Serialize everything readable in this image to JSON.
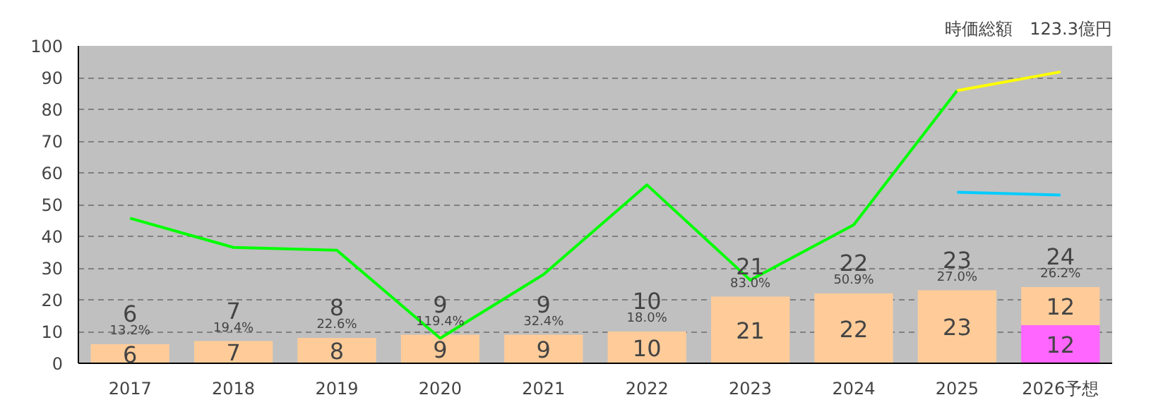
{
  "chart_data": {
    "type": "bar",
    "stacked": true,
    "categories": [
      "2017",
      "2018",
      "2019",
      "2020",
      "2021",
      "2022",
      "2023",
      "2024",
      "2025",
      "2026予想"
    ],
    "series": [
      {
        "color": "#ff66ff",
        "values": [
          null,
          null,
          null,
          null,
          null,
          null,
          null,
          null,
          null,
          12
        ],
        "value_labels": [
          null,
          null,
          null,
          null,
          null,
          null,
          null,
          null,
          null,
          "12"
        ]
      },
      {
        "color": "#ffcc99",
        "values": [
          6,
          7,
          8,
          9,
          9,
          10,
          21,
          22,
          23,
          12
        ],
        "value_labels": [
          "6",
          "7",
          "8",
          "9",
          "9",
          "10",
          "21",
          "22",
          "23",
          "12"
        ]
      },
      {
        "type": "line",
        "color": "#00ff00",
        "values": [
          45.7,
          36.5,
          35.6,
          7.9,
          28.0,
          56.2,
          26.2,
          43.6,
          85.9,
          null
        ]
      },
      {
        "type": "line",
        "color": "#ffff00",
        "values": [
          null,
          null,
          null,
          null,
          null,
          null,
          null,
          null,
          85.9,
          91.8
        ]
      },
      {
        "type": "line",
        "color": "#00ccff",
        "values": [
          null,
          null,
          null,
          null,
          null,
          null,
          null,
          null,
          53.9,
          53.0
        ]
      }
    ],
    "totals": [
      "6",
      "7",
      "8",
      "9",
      "9",
      "10",
      "21",
      "22",
      "23",
      "24"
    ],
    "annotations": [
      {
        "text": "13.2%",
        "x": "2017",
        "y": 6
      },
      {
        "text": "19.4%",
        "x": "2018",
        "y": 7
      },
      {
        "text": "22.6%",
        "x": "2019",
        "y": 8
      },
      {
        "text": "119.4%",
        "x": "2020",
        "y": 9
      },
      {
        "text": "32.4%",
        "x": "2021",
        "y": 9
      },
      {
        "text": "18.0%",
        "x": "2022",
        "y": 10
      },
      {
        "text": "83.0%",
        "x": "2023",
        "y": 21
      },
      {
        "text": "50.9%",
        "x": "2024",
        "y": 22
      },
      {
        "text": "27.0%",
        "x": "2025",
        "y": 23
      },
      {
        "text": "26.2%",
        "x": "2026予想",
        "y": 24
      },
      "時価総額　123.3億円"
    ],
    "ylim": [
      0,
      100
    ],
    "yticks": [
      0,
      10,
      20,
      30,
      40,
      50,
      60,
      70,
      80,
      90,
      100
    ],
    "grid": "y"
  }
}
